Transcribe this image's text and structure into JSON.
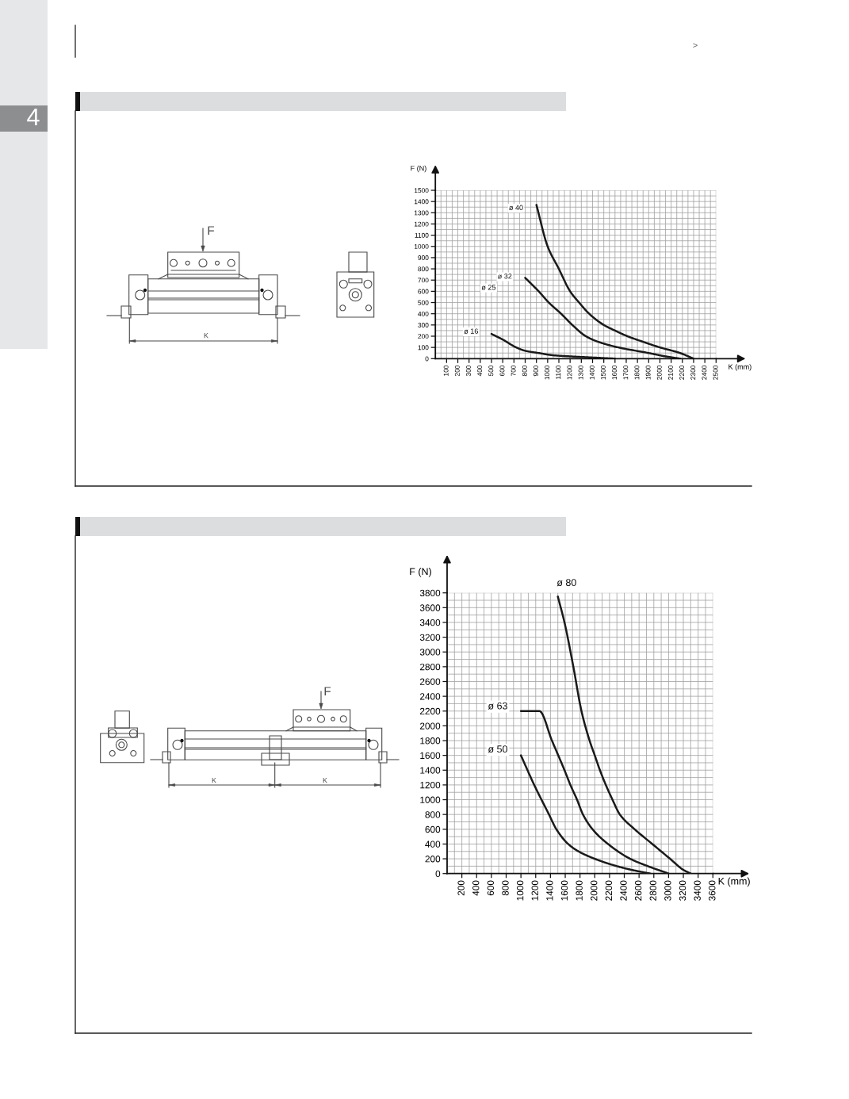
{
  "chart_data": [
    {
      "type": "other",
      "annotations": [
        ">",
        "4"
      ]
    },
    {
      "type": "other",
      "annotations": [
        "F",
        "K"
      ]
    },
    {
      "type": "line",
      "xlabel": "K (mm)",
      "ylabel": "F (N)",
      "xlim": [
        0,
        2500
      ],
      "ylim": [
        0,
        1500
      ],
      "xticks": [
        100,
        200,
        300,
        400,
        500,
        600,
        700,
        800,
        900,
        1000,
        1100,
        1200,
        1300,
        1400,
        1500,
        1600,
        1700,
        1800,
        1900,
        2000,
        2100,
        2200,
        2300,
        2400,
        2500
      ],
      "yticks": [
        0,
        100,
        200,
        300,
        400,
        500,
        600,
        700,
        800,
        900,
        1000,
        1100,
        1200,
        1300,
        1400,
        1500
      ],
      "grid": true,
      "annotations": [
        "ø 25"
      ],
      "series": [
        {
          "name": "ø 40",
          "color": "#1a1a1a",
          "x": [
            900,
            1000,
            1100,
            1200,
            1280,
            1370,
            1500,
            1600,
            1710,
            1850,
            2000,
            2180,
            2300
          ],
          "values": [
            1370,
            1000,
            800,
            600,
            500,
            400,
            300,
            250,
            200,
            150,
            100,
            50,
            0
          ]
        },
        {
          "name": "ø 32",
          "color": "#1a1a1a",
          "x": [
            800,
            920,
            1010,
            1120,
            1220,
            1340,
            1450,
            1630,
            1900,
            2050,
            2180
          ],
          "values": [
            720,
            600,
            500,
            400,
            300,
            200,
            150,
            100,
            50,
            20,
            0
          ]
        },
        {
          "name": "ø 16",
          "color": "#1a1a1a",
          "x": [
            500,
            600,
            720,
            800,
            920,
            1050,
            1200,
            1400,
            1600
          ],
          "values": [
            220,
            170,
            100,
            70,
            50,
            30,
            20,
            10,
            0
          ]
        }
      ]
    },
    {
      "type": "other",
      "annotations": [
        "F",
        "K",
        "K"
      ]
    },
    {
      "type": "line",
      "xlabel": "K (mm)",
      "ylabel": "F (N)",
      "xlim": [
        0,
        3600
      ],
      "ylim": [
        0,
        3800
      ],
      "xticks": [
        200,
        400,
        600,
        800,
        1000,
        1200,
        1400,
        1600,
        1800,
        2000,
        2200,
        2400,
        2600,
        2800,
        3000,
        3200,
        3400,
        3600
      ],
      "yticks": [
        0,
        200,
        400,
        600,
        800,
        1000,
        1200,
        1400,
        1600,
        1800,
        2000,
        2200,
        2400,
        2600,
        2800,
        3000,
        3200,
        3400,
        3600,
        3800
      ],
      "grid": true,
      "series": [
        {
          "name": "ø 80",
          "color": "#1a1a1a",
          "x": [
            1500,
            1590,
            1710,
            1820,
            1930,
            2000,
            2070,
            2150,
            2240,
            2340,
            2540,
            2780,
            3020,
            3200,
            3300
          ],
          "values": [
            3750,
            3400,
            2800,
            2200,
            1800,
            1600,
            1400,
            1200,
            1000,
            800,
            600,
            400,
            200,
            50,
            0
          ]
        },
        {
          "name": "ø 63",
          "color": "#1a1a1a",
          "x": [
            1000,
            1250,
            1420,
            1590,
            1670,
            1760,
            1840,
            1970,
            2180,
            2480,
            2720,
            3000
          ],
          "values": [
            2200,
            2200,
            1800,
            1400,
            1200,
            1000,
            800,
            600,
            400,
            200,
            100,
            0
          ]
        },
        {
          "name": "ø 50",
          "color": "#1a1a1a",
          "x": [
            1000,
            1180,
            1380,
            1480,
            1640,
            1780,
            2000,
            2300,
            2500,
            2750
          ],
          "values": [
            1600,
            1200,
            800,
            600,
            400,
            300,
            200,
            100,
            50,
            0
          ]
        }
      ]
    }
  ]
}
